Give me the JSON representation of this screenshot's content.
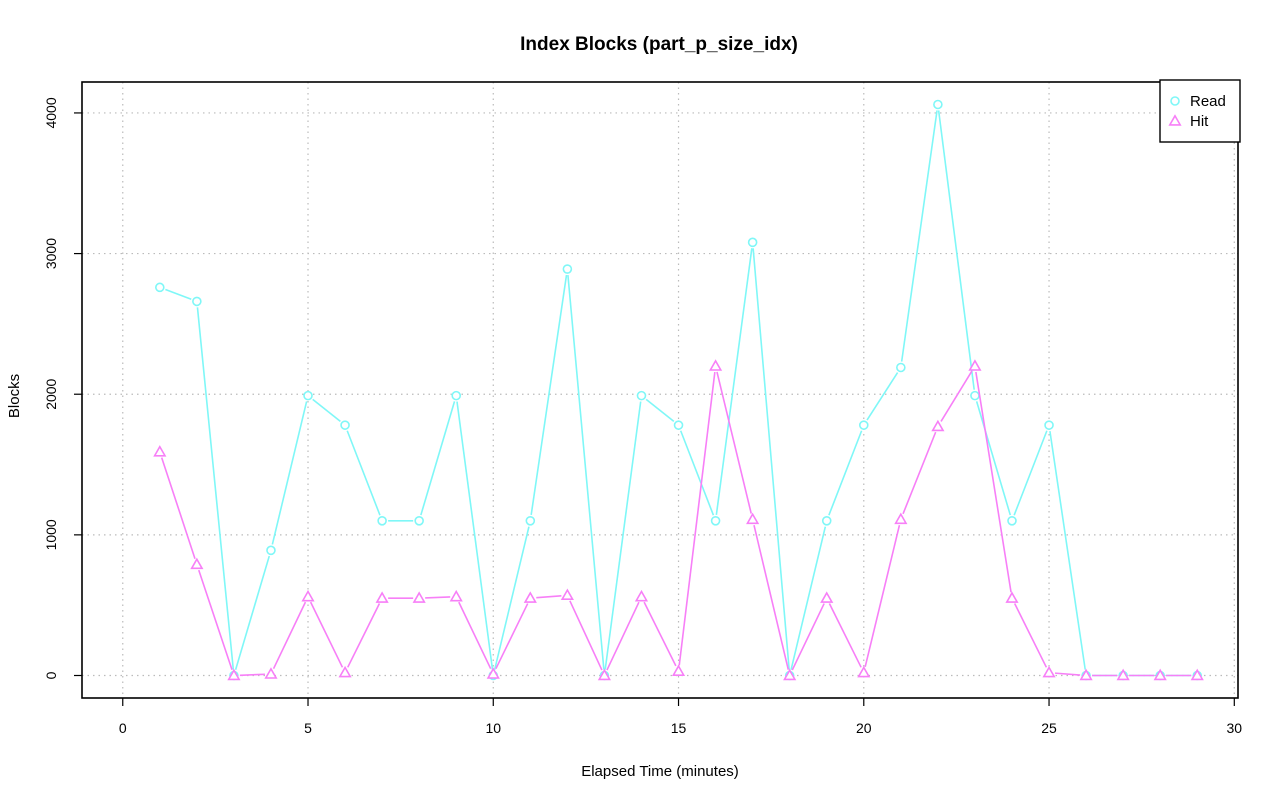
{
  "chart_data": {
    "type": "line",
    "title": "Index Blocks (part_p_size_idx)",
    "xlabel": "Elapsed Time (minutes)",
    "ylabel": "Blocks",
    "xlim": [
      -1.1,
      30.1
    ],
    "ylim": [
      -160,
      4220
    ],
    "xticks": [
      0,
      5,
      10,
      15,
      20,
      25,
      30
    ],
    "yticks": [
      0,
      1000,
      2000,
      3000,
      4000
    ],
    "grid": true,
    "legend_position": "top-right",
    "series": [
      {
        "name": "Read",
        "color": "#7ff7f7",
        "marker": "circle",
        "x": [
          1,
          2,
          3,
          4,
          5,
          6,
          7,
          8,
          9,
          10,
          11,
          12,
          13,
          14,
          15,
          16,
          17,
          18,
          19,
          20,
          21,
          22,
          23,
          24,
          25,
          26,
          27,
          28,
          29
        ],
        "values": [
          2760,
          2660,
          0,
          890,
          1990,
          1780,
          1100,
          1100,
          1990,
          0,
          1100,
          2890,
          0,
          1990,
          1780,
          1100,
          3080,
          0,
          1100,
          1780,
          2190,
          4060,
          1990,
          1100,
          1780,
          0,
          0,
          0,
          0
        ]
      },
      {
        "name": "Hit",
        "color": "#f77ff7",
        "marker": "triangle",
        "x": [
          1,
          2,
          3,
          4,
          5,
          6,
          7,
          8,
          9,
          10,
          11,
          12,
          13,
          14,
          15,
          16,
          17,
          18,
          19,
          20,
          21,
          22,
          23,
          24,
          25,
          26,
          27,
          28,
          29
        ],
        "values": [
          1590,
          790,
          0,
          10,
          560,
          20,
          550,
          550,
          560,
          10,
          550,
          570,
          0,
          560,
          30,
          2200,
          1110,
          0,
          550,
          20,
          1110,
          1770,
          2200,
          550,
          20,
          0,
          0,
          0,
          0
        ]
      }
    ]
  }
}
